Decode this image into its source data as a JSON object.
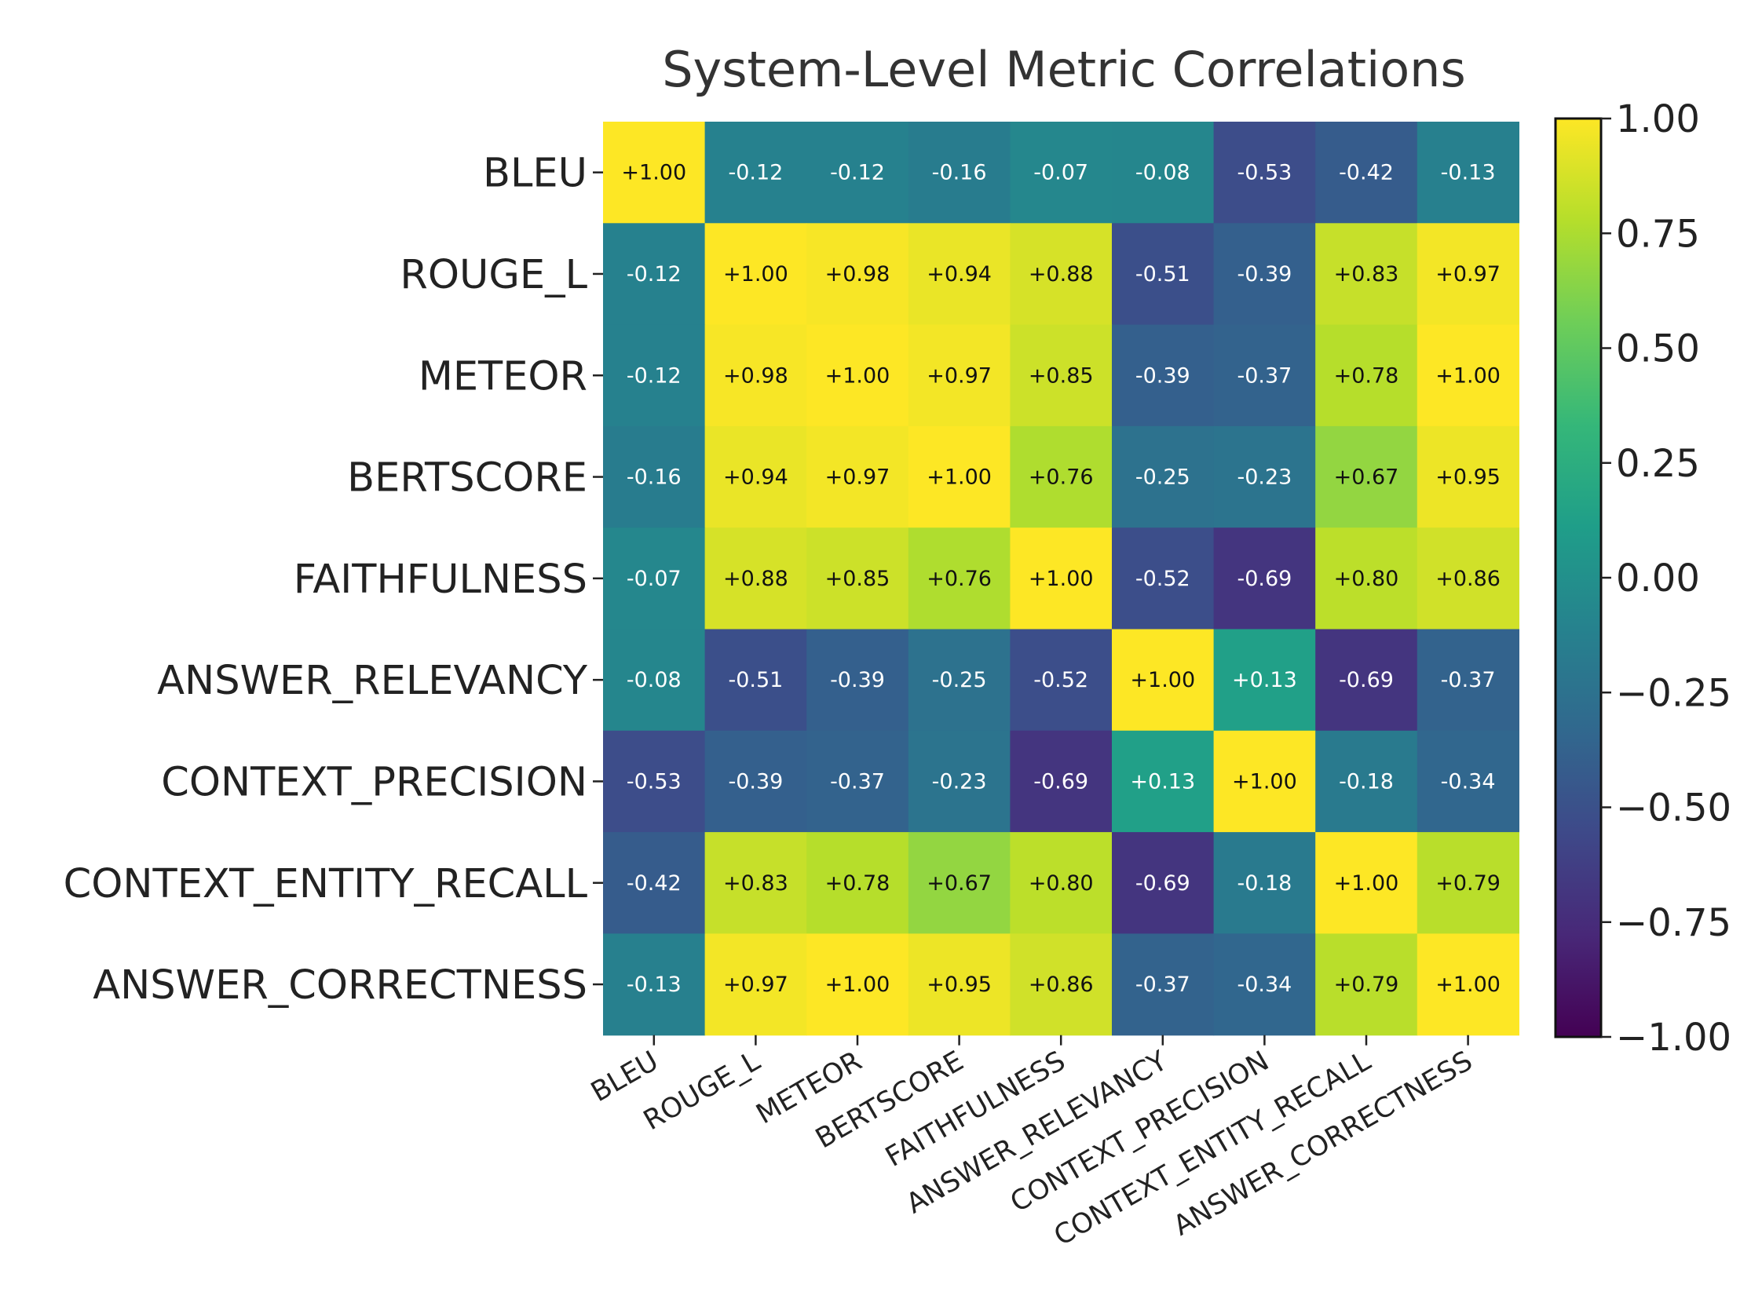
{
  "chart_data": {
    "type": "heatmap",
    "title": "System-Level Metric Correlations",
    "row_labels": [
      "BLEU",
      "ROUGE_L",
      "METEOR",
      "BERTSCORE",
      "FAITHFULNESS",
      "ANSWER_RELEVANCY",
      "CONTEXT_PRECISION",
      "CONTEXT_ENTITY_RECALL",
      "ANSWER_CORRECTNESS"
    ],
    "col_labels": [
      "BLEU",
      "ROUGE_L",
      "METEOR",
      "BERTSCORE",
      "FAITHFULNESS",
      "ANSWER_RELEVANCY",
      "CONTEXT_PRECISION",
      "CONTEXT_ENTITY_RECALL",
      "ANSWER_CORRECTNESS"
    ],
    "values": [
      [
        1.0,
        -0.12,
        -0.12,
        -0.16,
        -0.07,
        -0.08,
        -0.53,
        -0.42,
        -0.13
      ],
      [
        -0.12,
        1.0,
        0.98,
        0.94,
        0.88,
        -0.51,
        -0.39,
        0.83,
        0.97
      ],
      [
        -0.12,
        0.98,
        1.0,
        0.97,
        0.85,
        -0.39,
        -0.37,
        0.78,
        1.0
      ],
      [
        -0.16,
        0.94,
        0.97,
        1.0,
        0.76,
        -0.25,
        -0.23,
        0.67,
        0.95
      ],
      [
        -0.07,
        0.88,
        0.85,
        0.76,
        1.0,
        -0.52,
        -0.69,
        0.8,
        0.86
      ],
      [
        -0.08,
        -0.51,
        -0.39,
        -0.25,
        -0.52,
        1.0,
        0.13,
        -0.69,
        -0.37
      ],
      [
        -0.53,
        -0.39,
        -0.37,
        -0.23,
        -0.69,
        0.13,
        1.0,
        -0.18,
        -0.34
      ],
      [
        -0.42,
        0.83,
        0.78,
        0.67,
        0.8,
        -0.69,
        -0.18,
        1.0,
        0.79
      ],
      [
        -0.13,
        0.97,
        1.0,
        0.95,
        0.86,
        -0.37,
        -0.34,
        0.79,
        1.0
      ]
    ],
    "value_labels": [
      [
        "+1.00",
        "-0.12",
        "-0.12",
        "-0.16",
        "-0.07",
        "-0.08",
        "-0.53",
        "-0.42",
        "-0.13"
      ],
      [
        "-0.12",
        "+1.00",
        "+0.98",
        "+0.94",
        "+0.88",
        "-0.51",
        "-0.39",
        "+0.83",
        "+0.97"
      ],
      [
        "-0.12",
        "+0.98",
        "+1.00",
        "+0.97",
        "+0.85",
        "-0.39",
        "-0.37",
        "+0.78",
        "+1.00"
      ],
      [
        "-0.16",
        "+0.94",
        "+0.97",
        "+1.00",
        "+0.76",
        "-0.25",
        "-0.23",
        "+0.67",
        "+0.95"
      ],
      [
        "-0.07",
        "+0.88",
        "+0.85",
        "+0.76",
        "+1.00",
        "-0.52",
        "-0.69",
        "+0.80",
        "+0.86"
      ],
      [
        "-0.08",
        "-0.51",
        "-0.39",
        "-0.25",
        "-0.52",
        "+1.00",
        "+0.13",
        "-0.69",
        "-0.37"
      ],
      [
        "-0.53",
        "-0.39",
        "-0.37",
        "-0.23",
        "-0.69",
        "+0.13",
        "+1.00",
        "-0.18",
        "-0.34"
      ],
      [
        "-0.42",
        "+0.83",
        "+0.78",
        "+0.67",
        "+0.80",
        "-0.69",
        "-0.18",
        "+1.00",
        "+0.79"
      ],
      [
        "-0.13",
        "+0.97",
        "+1.00",
        "+0.95",
        "+0.86",
        "-0.37",
        "-0.34",
        "+0.79",
        "+1.00"
      ]
    ],
    "colormap": "viridis",
    "colorbar": {
      "min": -1.0,
      "max": 1.0,
      "tick_values": [
        1.0,
        0.75,
        0.5,
        0.25,
        0.0,
        -0.25,
        -0.5,
        -0.75,
        -1.0
      ],
      "tick_labels": [
        "1.00",
        "0.75",
        "0.50",
        "0.25",
        "0.00",
        "−0.25",
        "−0.50",
        "−0.75",
        "−1.00"
      ]
    },
    "legend_position": "right"
  }
}
